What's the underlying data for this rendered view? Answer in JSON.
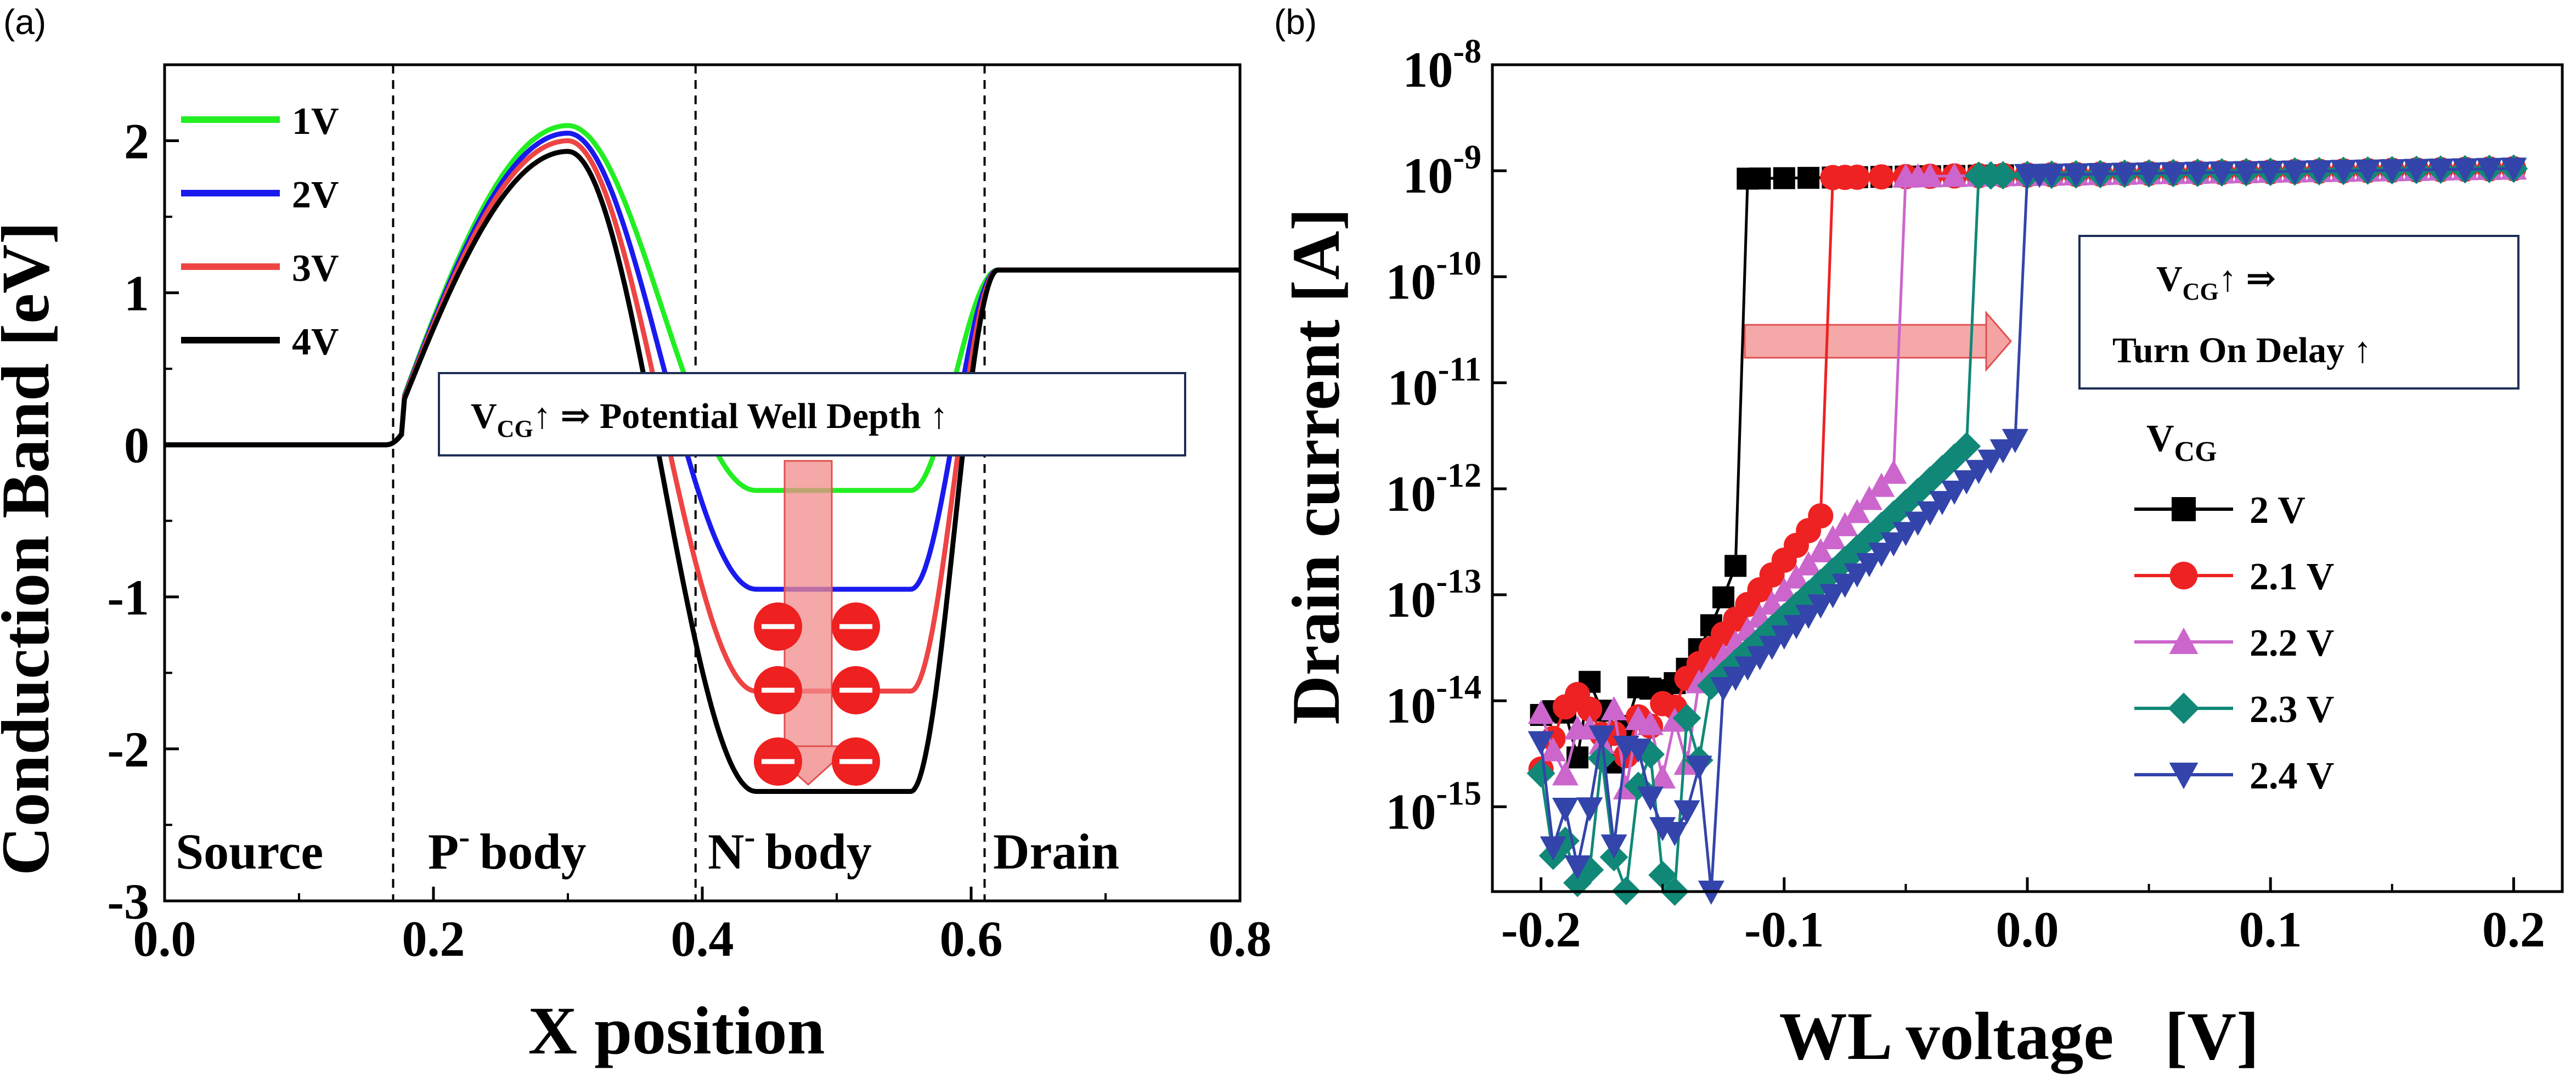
{
  "panels": [
    {
      "label": "(a)",
      "chart_data": {
        "type": "line",
        "xlabel": "X position",
        "ylabel": "Conduction Band [eV]",
        "xlim": [
          0.0,
          0.8
        ],
        "ylim": [
          -3,
          2.5
        ],
        "x_ticks": [
          "0.0",
          "0.2",
          "0.4",
          "0.6",
          "0.8"
        ],
        "y_ticks": [
          "-3",
          "-2",
          "-1",
          "0",
          "1",
          "2"
        ],
        "legend_position": "top-left",
        "region_boundaries": [
          0.17,
          0.395,
          0.61
        ],
        "regions": [
          "Source",
          "P",
          "body",
          "N",
          "body",
          "Drain"
        ],
        "region_superscript": "-",
        "series": [
          {
            "name": "1V",
            "color": "#22ee22",
            "peak": 2.1,
            "well": -0.3
          },
          {
            "name": "2V",
            "color": "#1a1aee",
            "peak": 2.05,
            "well": -0.95
          },
          {
            "name": "3V",
            "color": "#ee4444",
            "peak": 2.0,
            "well": -1.62
          },
          {
            "name": "4V",
            "color": "#000000",
            "peak": 1.93,
            "well": -2.28
          }
        ],
        "source_level": 0.0,
        "drain_level": 1.15,
        "annotation": {
          "prefix": "V",
          "sub": "CG",
          "text": "↑ ⇒ Potential Well Depth ↑"
        },
        "electron_glyph": "−"
      }
    },
    {
      "label": "(b)",
      "chart_data": {
        "type": "scatter",
        "xlabel": "WL voltage   [V]",
        "ylabel": "Drain current [A]",
        "xlim": [
          -0.22,
          0.22
        ],
        "ylim_log10": [
          -15.8,
          -8
        ],
        "y_scale": "log",
        "x_ticks": [
          "-0.2",
          "-0.1",
          "0.0",
          "0.1",
          "0.2"
        ],
        "y_ticks": [
          {
            "base": "10",
            "exp": "-8"
          },
          {
            "base": "10",
            "exp": "-9"
          },
          {
            "base": "10",
            "exp": "-10"
          },
          {
            "base": "10",
            "exp": "-11"
          },
          {
            "base": "10",
            "exp": "-12"
          },
          {
            "base": "10",
            "exp": "-13"
          },
          {
            "base": "10",
            "exp": "-14"
          },
          {
            "base": "10",
            "exp": "-15"
          }
        ],
        "legend_title": {
          "base": "V",
          "sub": "CG"
        },
        "legend_position": "right",
        "annotation": {
          "prefix": "V",
          "sub": "CG",
          "line1": "↑ ⇒",
          "line2": "Turn On Delay ↑"
        },
        "series": [
          {
            "name": "2 V",
            "color": "#000000",
            "marker": "square",
            "turn_on": -0.115,
            "sub_slope_end": -12.6
          },
          {
            "name": "2.1 V",
            "color": "#ee2222",
            "marker": "circle",
            "turn_on": -0.08,
            "sub_slope_end": -12.2
          },
          {
            "name": "2.2 V",
            "color": "#cc66cc",
            "marker": "triangle-up",
            "turn_on": -0.05,
            "sub_slope_end": -11.8
          },
          {
            "name": "2.3 V",
            "color": "#118877",
            "marker": "diamond",
            "turn_on": -0.022,
            "sub_slope_end": -11.6
          },
          {
            "name": "2.4 V",
            "color": "#3344aa",
            "marker": "triangle-down",
            "turn_on": 0.0,
            "sub_slope_end": -11.5
          }
        ],
        "on_current_log10": [
          -9.1,
          -8.98
        ]
      }
    }
  ]
}
